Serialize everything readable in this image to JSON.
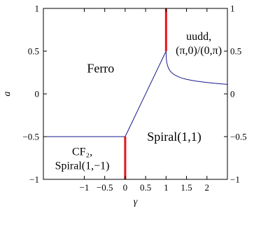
{
  "chart_data": {
    "type": "line",
    "xlabel": "γ",
    "ylabel": "a",
    "xlim": [
      -2.0,
      2.5
    ],
    "ylim": [
      -1,
      1
    ],
    "x_ticks": [
      -1,
      -0.5,
      0,
      0.5,
      1,
      1.5,
      2
    ],
    "x_tick_labels": [
      "−1",
      "−0.5",
      "0",
      "0.5",
      "1",
      "1.5",
      "2"
    ],
    "y_ticks": [
      -1,
      -0.5,
      0,
      0.5,
      1
    ],
    "y_tick_labels": [
      "−1",
      "−0.5",
      "0",
      "0.5",
      "1"
    ],
    "y_tick_labels_right": [
      "−1",
      "−0.5",
      "0",
      "0.5",
      "1"
    ],
    "line_color": "#1a1a8c",
    "highlight_color": "#e8141c",
    "series": [
      {
        "kind": "boundary",
        "x": [
          -2.0,
          0
        ],
        "y": [
          -0.5,
          -0.5
        ]
      },
      {
        "kind": "boundary",
        "x": [
          0,
          1
        ],
        "y": [
          -0.5,
          0.5
        ]
      },
      {
        "kind": "boundary",
        "x": [
          1,
          1.005,
          1.01,
          1.02,
          1.04,
          1.07,
          1.1,
          1.15,
          1.2,
          1.3,
          1.4,
          1.5,
          1.7,
          1.9,
          2.1,
          2.3,
          2.5
        ],
        "y": [
          0.5,
          0.425,
          0.395,
          0.36,
          0.325,
          0.29,
          0.268,
          0.243,
          0.225,
          0.2,
          0.183,
          0.17,
          0.152,
          0.139,
          0.128,
          0.119,
          0.112
        ]
      },
      {
        "kind": "highlight",
        "x": [
          0,
          0
        ],
        "y": [
          -1,
          -0.5
        ]
      },
      {
        "kind": "highlight",
        "x": [
          1,
          1
        ],
        "y": [
          0.5,
          1
        ]
      }
    ],
    "annotations": [
      {
        "id": "ferro",
        "lines": [
          "Ferro"
        ],
        "x": -0.6,
        "y": 0.3
      },
      {
        "id": "uudd",
        "lines": [
          "uudd,",
          "(π,0)/(0,π)"
        ],
        "x": 1.8,
        "y": 0.6
      },
      {
        "id": "spiral11",
        "lines": [
          "Spiral(1,1)"
        ],
        "x": 1.2,
        "y": -0.5
      },
      {
        "id": "cf2",
        "lines": [
          "CF₂,",
          "Spiral(1,−1)"
        ],
        "x": -1.05,
        "y": -0.75
      }
    ]
  }
}
